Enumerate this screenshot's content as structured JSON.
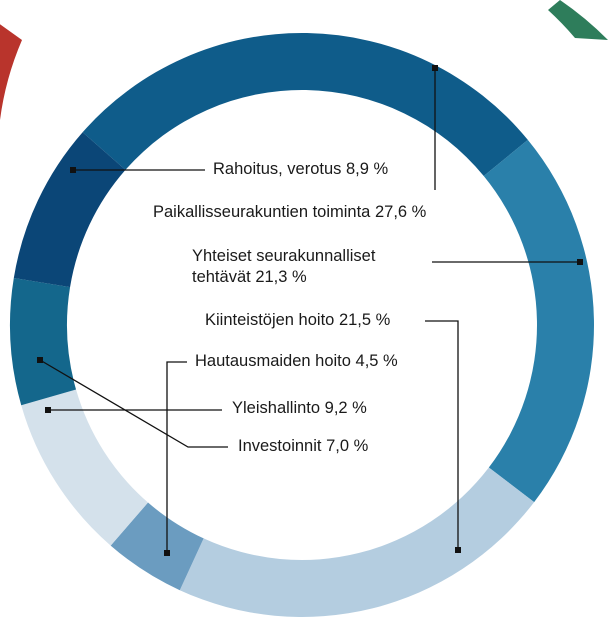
{
  "chart_data": {
    "type": "donut",
    "categories": [
      "Paikallisseurakuntien toiminta",
      "Yhteiset seurakunnalliset tehtävät",
      "Kiinteistöjen hoito",
      "Hautausmaiden hoito",
      "Yleishallinto",
      "Investoinnit",
      "Rahoitus, verotus"
    ],
    "values": [
      27.6,
      21.3,
      21.5,
      4.5,
      9.2,
      7.0,
      8.9
    ],
    "value_labels": [
      "27,6 %",
      "21,3 %",
      "21,5 %",
      "4,5 %",
      "9,2 %",
      "7,0 %",
      "8,9 %"
    ],
    "colors": [
      "#0f5c8a",
      "#2a80aa",
      "#b4cde0",
      "#6b9cc0",
      "#d4e1eb",
      "#14678c",
      "#0b4677"
    ]
  }
}
